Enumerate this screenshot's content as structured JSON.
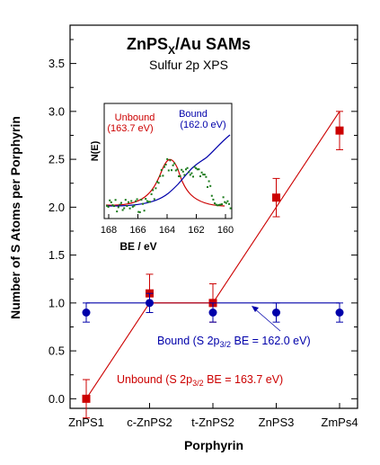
{
  "chart_data": {
    "type": "scatter",
    "title": "ZnPS",
    "title_sub": "X",
    "title_rest": "/Au SAMs",
    "subtitle": "Sulfur 2p XPS",
    "xlabel": "Porphyrin",
    "ylabel": "Number of S Atoms per Porphyrin",
    "categories": [
      "ZnPS1",
      "c-ZnPS2",
      "t-ZnPS2",
      "ZnPS3",
      "ZmPs4"
    ],
    "ylim": [
      -0.1,
      3.9
    ],
    "yticks": [
      "0.0",
      "0.5",
      "1.0",
      "1.5",
      "2.0",
      "2.5",
      "3.0",
      "3.5"
    ],
    "grid": false,
    "colors": {
      "unbound": "#cc0000",
      "bound": "#0000aa"
    },
    "series": [
      {
        "key": "unbound",
        "marker": "square",
        "values": [
          0.0,
          1.1,
          1.0,
          2.1,
          2.8
        ],
        "errors": [
          0.2,
          0.2,
          0.2,
          0.2,
          0.2
        ]
      },
      {
        "key": "bound",
        "marker": "circle",
        "values": [
          0.9,
          1.0,
          0.9,
          0.9,
          0.9
        ],
        "errors": [
          0.1,
          0.1,
          0.1,
          0.1,
          0.1
        ]
      }
    ],
    "fit_unbound": [
      [
        0,
        0.0
      ],
      [
        1,
        1.0
      ],
      [
        2,
        1.0
      ],
      [
        4,
        3.0
      ]
    ],
    "fit_bound": [
      [
        0,
        1.0
      ],
      [
        4,
        1.0
      ]
    ],
    "annotations": {
      "bound": {
        "pre": "Bound (S 2p",
        "sub": "3/2",
        "post": " BE = 162.0 eV)"
      },
      "unbound": {
        "pre": "Unbound (S 2p",
        "sub": "3/2",
        "post": " BE = 163.7 eV)"
      }
    },
    "inset": {
      "xlabel": "BE / eV",
      "ylabel": "N(E)",
      "xticks": [
        "168",
        "166",
        "164",
        "162",
        "160"
      ],
      "unbound_label": [
        "Unbound",
        "(163.7 eV)"
      ],
      "bound_label": [
        "Bound",
        "(162.0 eV)"
      ]
    }
  }
}
